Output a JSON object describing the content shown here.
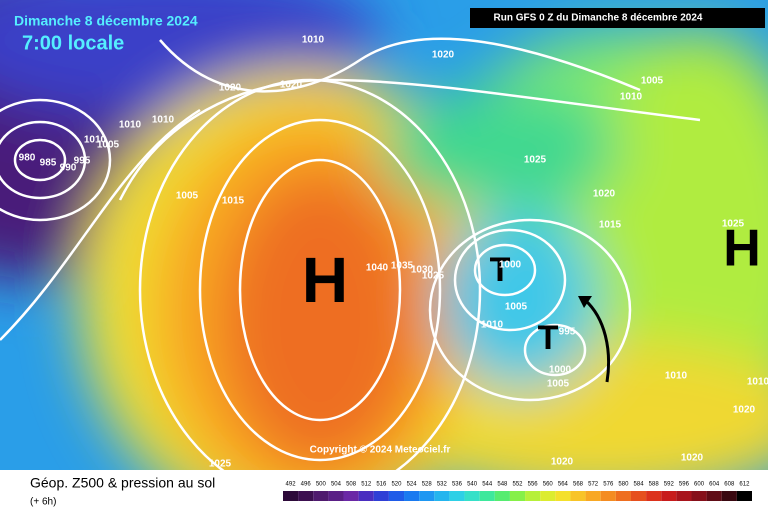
{
  "header": {
    "date": "Dimanche 8 décembre 2024",
    "time": "7:00 locale",
    "run": "Run GFS 0 Z du Dimanche 8 décembre 2024"
  },
  "copyright": "Copyright © 2024 Meteociel.fr",
  "footer": {
    "title": "Géop. Z500 & pression au sol",
    "lead": "(+ 6h)"
  },
  "systems": [
    {
      "label": "H"
    },
    {
      "label": "H"
    },
    {
      "label": "T"
    },
    {
      "label": "T"
    }
  ],
  "isobar_labels": [
    1010,
    1020,
    1020,
    1020,
    1005,
    1010,
    1010,
    1010,
    1010,
    1005,
    980,
    985,
    990,
    995,
    1005,
    1015,
    1025,
    1020,
    1015,
    1040,
    1035,
    1030,
    1025,
    1010,
    1005,
    995,
    1000,
    1005,
    1010,
    1020,
    1025,
    1010,
    1020,
    1020,
    1025,
    1000
  ],
  "legend": [
    {
      "value": 492,
      "color": "#2d0a3a"
    },
    {
      "value": 496,
      "color": "#3c0f50"
    },
    {
      "value": 500,
      "color": "#4f1a6e"
    },
    {
      "value": 504,
      "color": "#5a1f86"
    },
    {
      "value": 508,
      "color": "#6a28a6"
    },
    {
      "value": 512,
      "color": "#4a2ec0"
    },
    {
      "value": 516,
      "color": "#2f3fd6"
    },
    {
      "value": 520,
      "color": "#1f5be8"
    },
    {
      "value": 524,
      "color": "#1a7af0"
    },
    {
      "value": 528,
      "color": "#1e97f2"
    },
    {
      "value": 532,
      "color": "#24b5ee"
    },
    {
      "value": 536,
      "color": "#2ed0e6"
    },
    {
      "value": 540,
      "color": "#36e0c8"
    },
    {
      "value": 544,
      "color": "#3ee89c"
    },
    {
      "value": 548,
      "color": "#56ec70"
    },
    {
      "value": 552,
      "color": "#86f048"
    },
    {
      "value": 556,
      "color": "#b6f03a"
    },
    {
      "value": 560,
      "color": "#dcec30"
    },
    {
      "value": 564,
      "color": "#f4e02c"
    },
    {
      "value": 568,
      "color": "#f8c428"
    },
    {
      "value": 572,
      "color": "#f8a824"
    },
    {
      "value": 576,
      "color": "#f48c22"
    },
    {
      "value": 580,
      "color": "#ee6e20"
    },
    {
      "value": 584,
      "color": "#e6501e"
    },
    {
      "value": 588,
      "color": "#dc321c"
    },
    {
      "value": 592,
      "color": "#c81c1c"
    },
    {
      "value": 596,
      "color": "#a8141c"
    },
    {
      "value": 600,
      "color": "#86101a"
    },
    {
      "value": 604,
      "color": "#600c16"
    },
    {
      "value": 608,
      "color": "#3a0810"
    },
    {
      "value": 612,
      "color": "#000000"
    }
  ]
}
